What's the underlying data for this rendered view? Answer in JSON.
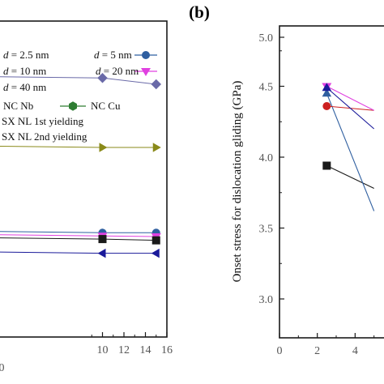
{
  "chart_data": [
    {
      "panel": "a",
      "type": "line",
      "xlim": [
        0,
        16
      ],
      "x_ticks": [
        "10",
        "12",
        "14",
        "16"
      ],
      "x_tick_partial": "0",
      "legend": [
        {
          "name": "d = 2.5 nm",
          "prefix": "d",
          "rest": " = 2.5 nm",
          "color": "#1a1a1a",
          "marker": "square"
        },
        {
          "name": "d = 5 nm",
          "prefix": "d",
          "rest": " = 5 nm",
          "color": "#2f5fa0",
          "marker": "circle"
        },
        {
          "name": "d = 10 nm",
          "prefix": "d",
          "rest": " = 10 nm",
          "color": "#1a1a1a",
          "marker": "square"
        },
        {
          "name": "d = 20 nm",
          "prefix": "d",
          "rest": " = 20 nm",
          "color": "#e040e0",
          "marker": "triangle-down"
        },
        {
          "name": "d = 40 nm",
          "prefix": "d",
          "rest": " = 40 nm",
          "color": "#1a1a1a",
          "marker": "square"
        },
        {
          "name": "NC Nb",
          "color": "#1a1a1a",
          "marker": "none"
        },
        {
          "name": "NC Cu",
          "color": "#2e7d32",
          "marker": "hexagon"
        },
        {
          "name": "SX NL 1st yielding",
          "color": "#1a1a1a",
          "marker": "none"
        },
        {
          "name": "SX NL 2nd yielding",
          "color": "#1a1a1a",
          "marker": "none"
        }
      ],
      "series": [
        {
          "color": "#6a6aa8",
          "marker": "diamond",
          "x": [
            10,
            15
          ],
          "y": [
            0.82,
            0.8
          ]
        },
        {
          "color": "#8a8a1a",
          "marker": "triangle-right",
          "x": [
            10,
            15
          ],
          "y": [
            0.6,
            0.6
          ]
        },
        {
          "color": "#2f5fa0",
          "marker": "circle",
          "x": [
            10,
            15
          ],
          "y": [
            0.33,
            0.33
          ]
        },
        {
          "color": "#e040e0",
          "marker": "triangle-down",
          "x": [
            10,
            15
          ],
          "y": [
            0.32,
            0.318
          ]
        },
        {
          "color": "#1a1a1a",
          "marker": "square",
          "x": [
            10,
            15
          ],
          "y": [
            0.31,
            0.306
          ]
        },
        {
          "color": "#1a1a9a",
          "marker": "triangle-left",
          "x": [
            10,
            15
          ],
          "y": [
            0.265,
            0.265
          ]
        }
      ]
    },
    {
      "panel": "b",
      "type": "line",
      "panel_label": "(b)",
      "ylabel": "Onset stress for dislocation gliding (GPa)",
      "ylim": [
        2.8,
        5.0
      ],
      "xlim": [
        0,
        6
      ],
      "y_ticks": [
        "3.0",
        "3.5",
        "4.0",
        "4.5",
        "5.0"
      ],
      "x_ticks": [
        "0",
        "2",
        "4"
      ],
      "series": [
        {
          "color": "#1a1a1a",
          "marker": "square",
          "x": [
            2.5,
            5
          ],
          "y": [
            3.94,
            3.78
          ]
        },
        {
          "color": "#2f5fa0",
          "marker": "triangle-up",
          "x": [
            2.5,
            5
          ],
          "y": [
            4.45,
            3.62
          ]
        },
        {
          "color": "#cc2020",
          "marker": "circle",
          "x": [
            2.5,
            5
          ],
          "y": [
            4.36,
            4.33
          ]
        },
        {
          "color": "#e040e0",
          "marker": "triangle-down",
          "x": [
            2.5,
            5
          ],
          "y": [
            4.5,
            4.33
          ]
        },
        {
          "color": "#1a1a9a",
          "marker": "triangle-up",
          "x": [
            2.5,
            5
          ],
          "y": [
            4.49,
            4.2
          ]
        }
      ]
    }
  ]
}
